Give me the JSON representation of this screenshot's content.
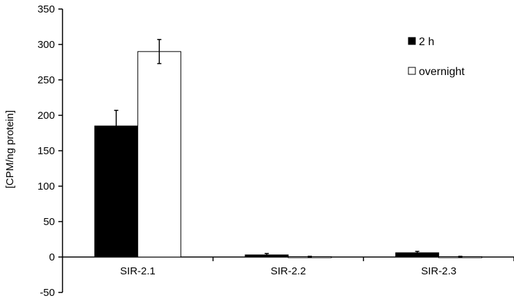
{
  "chart_data": {
    "type": "bar",
    "title": "",
    "xlabel": "",
    "ylabel": "[CPM/ng protein]",
    "ylim": [
      -50,
      350
    ],
    "yticks": [
      -50,
      0,
      50,
      100,
      150,
      200,
      250,
      300,
      350
    ],
    "categories": [
      "SIR-2.1",
      "SIR-2.2",
      "SIR-2.3"
    ],
    "series": [
      {
        "name": "2 h",
        "color": "#000000",
        "values": [
          185,
          3,
          6
        ],
        "errors": [
          22,
          2,
          2
        ]
      },
      {
        "name": "overnight",
        "color": "#ffffff",
        "values": [
          290,
          0.5,
          0.5
        ],
        "errors": [
          17,
          0.5,
          0.5
        ]
      }
    ],
    "grid": false,
    "legend": "top-right"
  }
}
